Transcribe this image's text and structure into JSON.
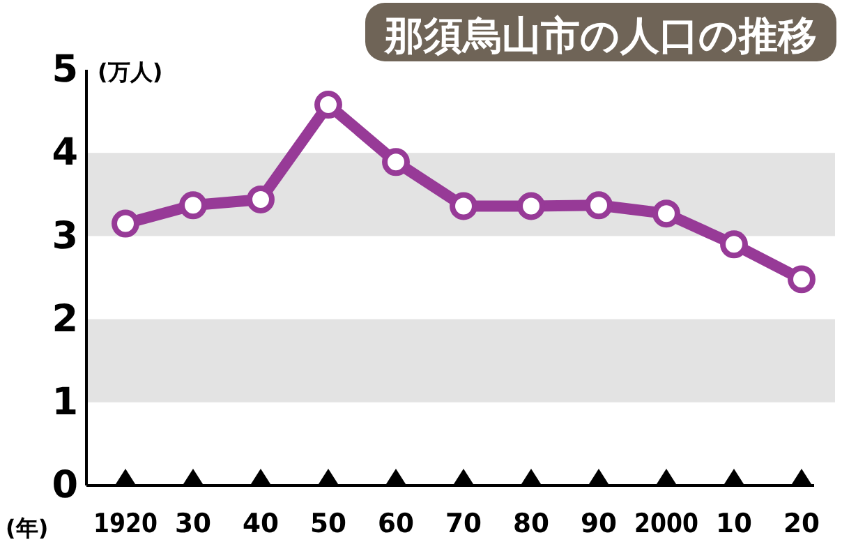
{
  "chart_data": {
    "type": "line",
    "title": "那須烏山市の人口の推移",
    "xlabel": "(年)",
    "ylabel": "(万人)",
    "categories": [
      "1920",
      "30",
      "40",
      "50",
      "60",
      "70",
      "80",
      "90",
      "2000",
      "10",
      "20"
    ],
    "series": [
      {
        "color": "#973a97",
        "values": [
          3.15,
          3.37,
          3.44,
          4.58,
          3.89,
          3.36,
          3.36,
          3.37,
          3.27,
          2.9,
          2.48
        ]
      }
    ],
    "ylim": [
      0,
      5
    ],
    "yticks": [
      0,
      1,
      2,
      3,
      4,
      5
    ],
    "marker": "circle",
    "line_style": "solid"
  }
}
